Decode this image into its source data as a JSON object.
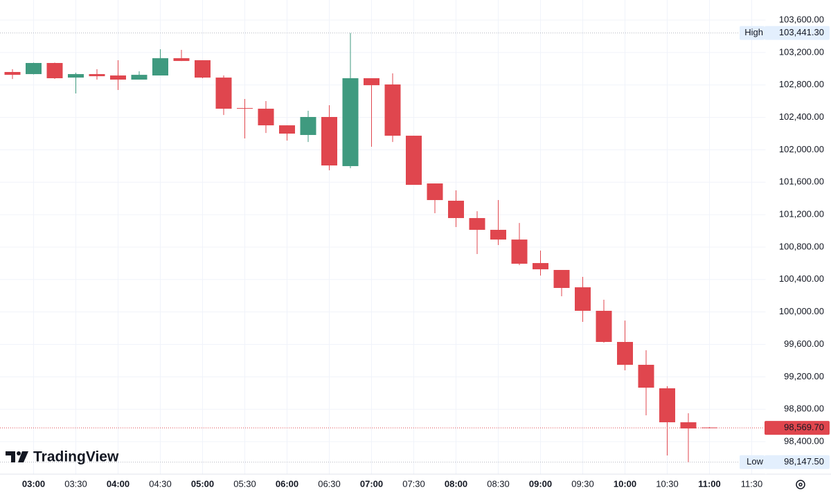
{
  "chart_data": {
    "type": "candlestick",
    "x": [
      null,
      "03:00",
      null,
      "03:30",
      null,
      "04:00",
      null,
      "04:30",
      null,
      "05:00",
      null,
      "05:30",
      null,
      "06:00",
      null,
      "06:30",
      null,
      "07:00",
      null,
      "07:30",
      null,
      "08:00",
      null,
      "08:30",
      null,
      "09:00",
      null,
      "09:30",
      null,
      "10:00",
      null,
      "10:30",
      null,
      "11:00",
      null,
      "11:30"
    ],
    "open": [
      102960,
      102934,
      103071,
      102891,
      102934,
      102917,
      102866,
      102917,
      103130,
      103105,
      102891,
      102515,
      102507,
      102302,
      102183,
      102405,
      101799,
      102883,
      102806,
      102174,
      101585,
      101372,
      101158,
      101013,
      100893,
      100603,
      100518,
      100304,
      100014,
      99630,
      99348,
      99058,
      98639,
      98575,
      null,
      null
    ],
    "high": [
      102994,
      103075,
      103075,
      102951,
      102994,
      103105,
      102968,
      103241,
      103233,
      103105,
      102917,
      102627,
      102601,
      102302,
      102482,
      102550,
      103441.3,
      102883,
      102943,
      102174,
      101585,
      101500,
      101243,
      101380,
      101098,
      100757,
      100518,
      100432,
      100151,
      99894,
      99527,
      99084,
      98750,
      98580,
      null,
      null
    ],
    "low": [
      102874,
      102930,
      102875,
      102695,
      102866,
      102738,
      102866,
      102917,
      103096,
      102883,
      102430,
      102140,
      102208,
      102114,
      102097,
      101747,
      101773,
      102038,
      102097,
      101568,
      101218,
      101047,
      100714,
      100825,
      100578,
      100449,
      100193,
      99877,
      99621,
      99280,
      98725,
      98230,
      98147.5,
      98565,
      null,
      null
    ],
    "close": [
      102925,
      103071,
      102883,
      102934,
      102908,
      102866,
      102925,
      103130,
      103096,
      102891,
      102507,
      102507,
      102302,
      102200,
      102405,
      101807,
      102883,
      102797,
      102174,
      101568,
      101380,
      101158,
      101013,
      100893,
      100595,
      100526,
      100296,
      100014,
      99630,
      99348,
      99066,
      98639,
      98563,
      98569.7,
      null,
      null
    ],
    "up_color": "#3f9a7f",
    "down_color": "#e0464e",
    "ylim": [
      97999,
      103848
    ],
    "yticks": [
      {
        "value": 98400,
        "label": "98,400.00"
      },
      {
        "value": 98800,
        "label": "98,800.00"
      },
      {
        "value": 99200,
        "label": "99,200.00"
      },
      {
        "value": 99600,
        "label": "99,600.00"
      },
      {
        "value": 100000,
        "label": "100,000.00"
      },
      {
        "value": 100400,
        "label": "100,400.00"
      },
      {
        "value": 100800,
        "label": "100,800.00"
      },
      {
        "value": 101200,
        "label": "101,200.00"
      },
      {
        "value": 101600,
        "label": "101,600.00"
      },
      {
        "value": 102000,
        "label": "102,000.00"
      },
      {
        "value": 102400,
        "label": "102,400.00"
      },
      {
        "value": 102800,
        "label": "102,800.00"
      },
      {
        "value": 103200,
        "label": "103,200.00"
      },
      {
        "value": 103600,
        "label": "103,600.00"
      }
    ],
    "grid": true,
    "high_marker": {
      "label": "High",
      "value": 103441.3,
      "value_label": "103,441.30"
    },
    "low_marker": {
      "label": "Low",
      "value": 98147.5,
      "value_label": "98,147.50"
    },
    "last_price": {
      "value": 98569.7,
      "value_label": "98,569.70"
    },
    "brand": "TradingView"
  }
}
